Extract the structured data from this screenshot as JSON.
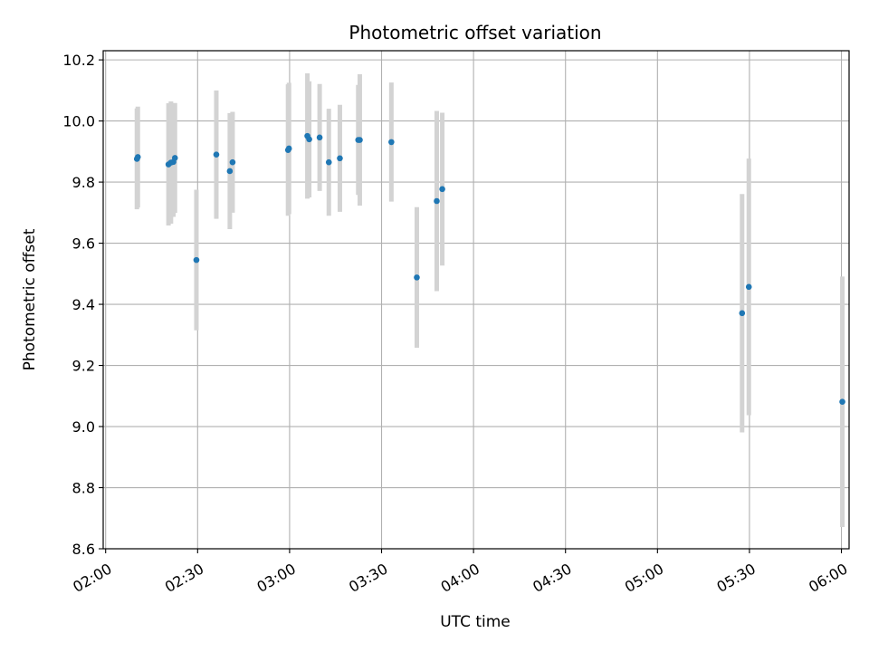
{
  "chart_data": {
    "type": "scatter",
    "title": "Photometric offset variation",
    "xlabel": "UTC time",
    "ylabel": "Photometric offset",
    "x_unit": "minutes since 02:00",
    "xlim": [
      -0.8,
      242.5
    ],
    "ylim": [
      8.6,
      10.23
    ],
    "x_ticks": [
      0,
      30,
      60,
      90,
      120,
      150,
      180,
      210,
      240
    ],
    "x_tick_labels": [
      "02:00",
      "02:30",
      "03:00",
      "03:30",
      "04:00",
      "04:30",
      "05:00",
      "05:30",
      "06:00"
    ],
    "y_ticks": [
      8.6,
      8.8,
      9.0,
      9.2,
      9.4,
      9.6,
      9.8,
      10.0,
      10.2
    ],
    "y_tick_labels": [
      "8.6",
      "8.8",
      "9.0",
      "9.2",
      "9.4",
      "9.6",
      "9.8",
      "10.0",
      "10.2"
    ],
    "grid": true,
    "marker_color": "#1f77b4",
    "errorbar_color": "#d3d3d3",
    "series": [
      {
        "name": "offset",
        "points": [
          {
            "x": 10.2,
            "y": 9.876,
            "yerr": 0.165
          },
          {
            "x": 10.5,
            "y": 9.882,
            "yerr": 0.165
          },
          {
            "x": 20.5,
            "y": 9.858,
            "yerr": 0.2
          },
          {
            "x": 21.3,
            "y": 9.864,
            "yerr": 0.2
          },
          {
            "x": 22.1,
            "y": 9.866,
            "yerr": 0.18
          },
          {
            "x": 22.6,
            "y": 9.879,
            "yerr": 0.18
          },
          {
            "x": 29.6,
            "y": 9.545,
            "yerr": 0.23
          },
          {
            "x": 36.1,
            "y": 9.89,
            "yerr": 0.21
          },
          {
            "x": 40.5,
            "y": 9.836,
            "yerr": 0.19
          },
          {
            "x": 41.4,
            "y": 9.865,
            "yerr": 0.165
          },
          {
            "x": 59.5,
            "y": 9.905,
            "yerr": 0.215
          },
          {
            "x": 59.8,
            "y": 9.91,
            "yerr": 0.215
          },
          {
            "x": 65.8,
            "y": 9.951,
            "yerr": 0.205
          },
          {
            "x": 66.4,
            "y": 9.94,
            "yerr": 0.19
          },
          {
            "x": 69.8,
            "y": 9.946,
            "yerr": 0.175
          },
          {
            "x": 72.8,
            "y": 9.865,
            "yerr": 0.175
          },
          {
            "x": 76.4,
            "y": 9.878,
            "yerr": 0.175
          },
          {
            "x": 82.4,
            "y": 9.938,
            "yerr": 0.18
          },
          {
            "x": 82.9,
            "y": 9.938,
            "yerr": 0.215
          },
          {
            "x": 93.2,
            "y": 9.931,
            "yerr": 0.195
          },
          {
            "x": 101.5,
            "y": 9.488,
            "yerr": 0.23
          },
          {
            "x": 108.0,
            "y": 9.738,
            "yerr": 0.295
          },
          {
            "x": 109.8,
            "y": 9.777,
            "yerr": 0.25
          },
          {
            "x": 207.6,
            "y": 9.371,
            "yerr": 0.39
          },
          {
            "x": 209.8,
            "y": 9.457,
            "yerr": 0.42
          },
          {
            "x": 240.3,
            "y": 9.081,
            "yerr": 0.41
          }
        ]
      }
    ]
  }
}
